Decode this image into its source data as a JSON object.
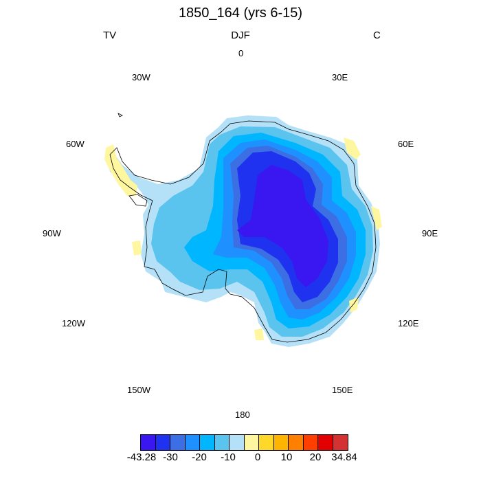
{
  "title": "1850_164 (yrs 6-15)",
  "left_label": "TV",
  "center_label": "DJF",
  "right_label": "C",
  "longitude_labels": {
    "n0": "0",
    "e30": "30E",
    "e60": "60E",
    "e90": "90E",
    "e120": "120E",
    "e150": "150E",
    "s180": "180",
    "w150": "150W",
    "w120": "120W",
    "w90": "90W",
    "w60": "60W",
    "w30": "30W"
  },
  "colorbar": {
    "colors": [
      "#3a16f0",
      "#1e32ef",
      "#3c6fe3",
      "#1e90ff",
      "#00b6ff",
      "#5ac3ee",
      "#b4e1f7",
      "#fff7a0",
      "#ffd92a",
      "#ffb400",
      "#ff7f00",
      "#ff3f00",
      "#e30000",
      "#d43232"
    ],
    "labels": [
      "-43.28",
      "-30",
      "-20",
      "-10",
      "0",
      "10",
      "20",
      "34.84"
    ]
  },
  "colors": {
    "c_min": "#3a16f0",
    "c_m30": "#1e32ef",
    "c_m20": "#3c6fe3",
    "c_m15": "#1e90ff",
    "c_m10": "#00b6ff",
    "c_m5": "#5ac3ee",
    "c_m0": "#b4e1f7",
    "c_p0": "#fff7a0"
  }
}
